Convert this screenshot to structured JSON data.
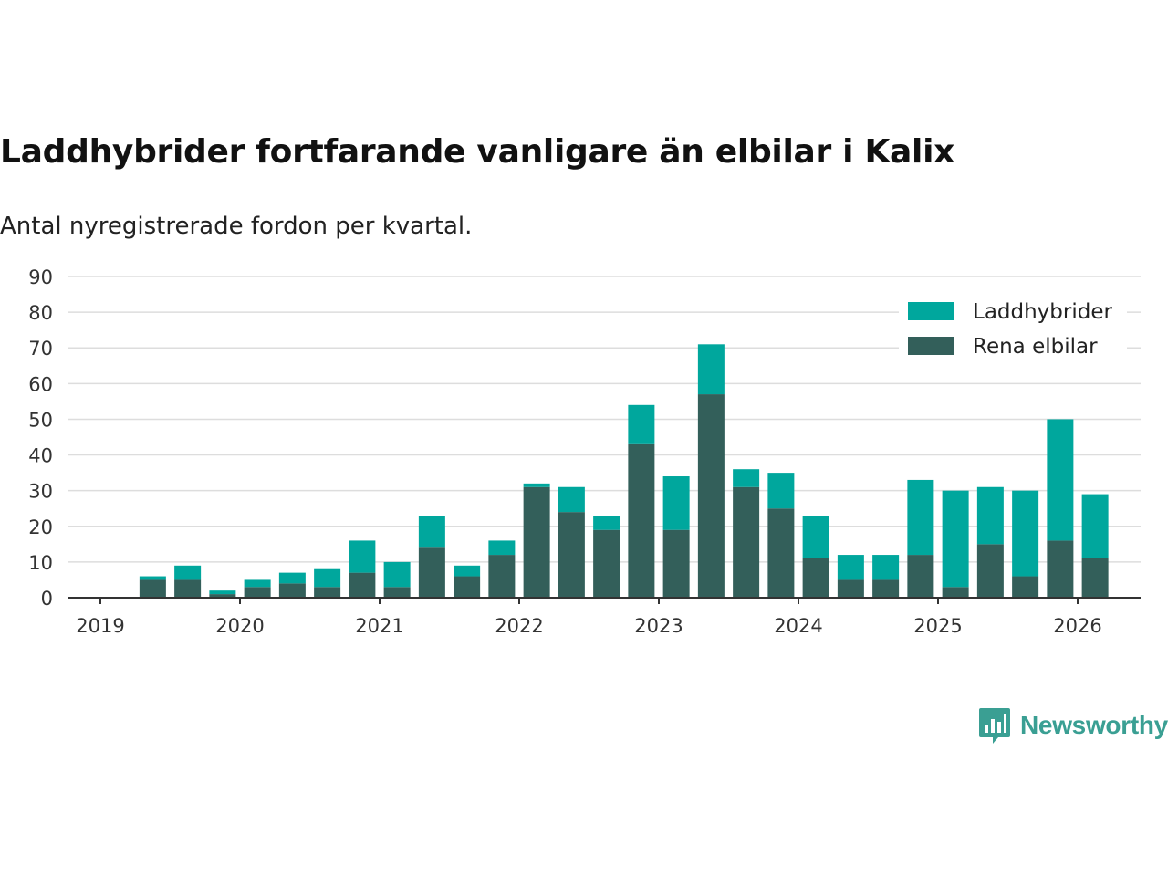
{
  "header": {
    "title": "Laddhybrider fortfarande vanligare än elbilar i Kalix",
    "subtitle": "Antal nyregistrerade fordon per kvartal."
  },
  "brand": {
    "name": "Newsworthy",
    "icon": "newsworthy-logo-icon",
    "color": "#3a9f93"
  },
  "colors": {
    "laddhybrider": "#00a79d",
    "rena_elbilar": "#335f5a",
    "grid": "#dddddd",
    "axis": "#333333"
  },
  "chart_data": {
    "type": "bar",
    "stacked": true,
    "title": "Laddhybrider fortfarande vanligare än elbilar i Kalix",
    "subtitle": "Antal nyregistrerade fordon per kvartal.",
    "xlabel": "",
    "ylabel": "",
    "ylim": [
      0,
      90
    ],
    "yticks": [
      0,
      10,
      20,
      30,
      40,
      50,
      60,
      70,
      80,
      90
    ],
    "xticks": [
      "2019",
      "2020",
      "2021",
      "2022",
      "2023",
      "2024",
      "2025",
      "2026"
    ],
    "grid": true,
    "legend_position": "top-right",
    "categories": [
      "2019 Q2",
      "2019 Q3",
      "2019 Q4",
      "2020 Q1",
      "2020 Q2",
      "2020 Q3",
      "2020 Q4",
      "2021 Q1",
      "2021 Q2",
      "2021 Q3",
      "2021 Q4",
      "2022 Q1",
      "2022 Q2",
      "2022 Q3",
      "2022 Q4",
      "2023 Q1",
      "2023 Q2",
      "2023 Q3",
      "2023 Q4",
      "2024 Q1",
      "2024 Q2",
      "2024 Q3",
      "2024 Q4",
      "2025 Q1",
      "2025 Q2",
      "2025 Q3",
      "2025 Q4",
      "2026 Q1"
    ],
    "series": [
      {
        "name": "Rena elbilar",
        "color": "#335f5a",
        "values": [
          5,
          5,
          1,
          3,
          4,
          3,
          7,
          3,
          14,
          6,
          12,
          31,
          24,
          19,
          43,
          19,
          57,
          31,
          25,
          11,
          5,
          5,
          12,
          3,
          15,
          6,
          16,
          11
        ]
      },
      {
        "name": "Laddhybrider",
        "color": "#00a79d",
        "values": [
          1,
          4,
          1,
          2,
          3,
          5,
          9,
          7,
          9,
          3,
          4,
          1,
          7,
          4,
          11,
          15,
          14,
          5,
          10,
          12,
          7,
          7,
          21,
          27,
          16,
          24,
          34,
          18
        ]
      }
    ],
    "legend": [
      "Laddhybrider",
      "Rena elbilar"
    ]
  }
}
